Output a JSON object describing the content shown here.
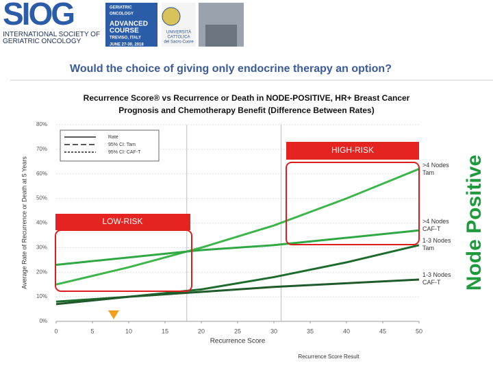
{
  "header": {
    "logo": "SIOG",
    "society": "INTERNATIONAL SOCIETY OF GERIATRIC ONCOLOGY",
    "course": [
      "GERIATRIC",
      "ONCOLOGY",
      "ADVANCED",
      "COURSE",
      "TREVISO, ITALY",
      "JUNE 27-30, 2018"
    ],
    "university": [
      "UNIVERSITÀ",
      "CATTOLICA",
      "del Sacro Cuore"
    ]
  },
  "title": "Would the choice of giving only endocrine therapy an option?",
  "side_label": "Node Positive",
  "chart_data": {
    "type": "line",
    "title": "Recurrence Score® vs Recurrence or Death in NODE-POSITIVE, HR+ Breast Cancer",
    "subtitle": "Prognosis and Chemotherapy Benefit (Difference Between Rates)",
    "x_label": "Recurrence Score",
    "y_label": "Average Rate of Recurrence or Death at 5 Years",
    "x": [
      0,
      10,
      20,
      30,
      40,
      50
    ],
    "series": [
      {
        "name": ">4 Nodes Tam",
        "color": "#3cb54a",
        "values": [
          15,
          22,
          30,
          39,
          50,
          62
        ]
      },
      {
        "name": ">4 Nodes CAF-T",
        "color": "#2fa844",
        "values": [
          23,
          26,
          29,
          31,
          34,
          37
        ]
      },
      {
        "name": "1-3 Nodes Tam",
        "color": "#1e6b2e",
        "values": [
          8,
          10,
          13,
          18,
          24,
          31
        ]
      },
      {
        "name": "1-3 Nodes CAF-T",
        "color": "#1f5a2a",
        "values": [
          7,
          10,
          12,
          14,
          15.5,
          17
        ]
      }
    ],
    "legend_items": [
      "Rate",
      "95% CI: Tam",
      "95% CI: CAF-T"
    ],
    "xlim": [
      0,
      50
    ],
    "xticks": [
      0,
      5,
      10,
      15,
      20,
      25,
      30,
      35,
      40,
      45,
      50
    ],
    "ylim": [
      0,
      80
    ],
    "yticks": [
      {
        "value": 0,
        "label": "0%"
      },
      {
        "value": 10,
        "label": "10%"
      },
      {
        "value": 20,
        "label": "20%"
      },
      {
        "value": 30,
        "label": "30%"
      },
      {
        "value": 40,
        "label": "40%"
      },
      {
        "value": 50,
        "label": "50%"
      },
      {
        "value": 60,
        "label": "60%"
      },
      {
        "value": 70,
        "label": "70%"
      },
      {
        "value": 80,
        "label": "80%"
      }
    ],
    "reference_x": [
      18,
      31
    ],
    "grid": true,
    "annotations": [
      "HIGH-RISK",
      "LOW-RISK"
    ]
  },
  "footer": "Recurrence Score Result"
}
